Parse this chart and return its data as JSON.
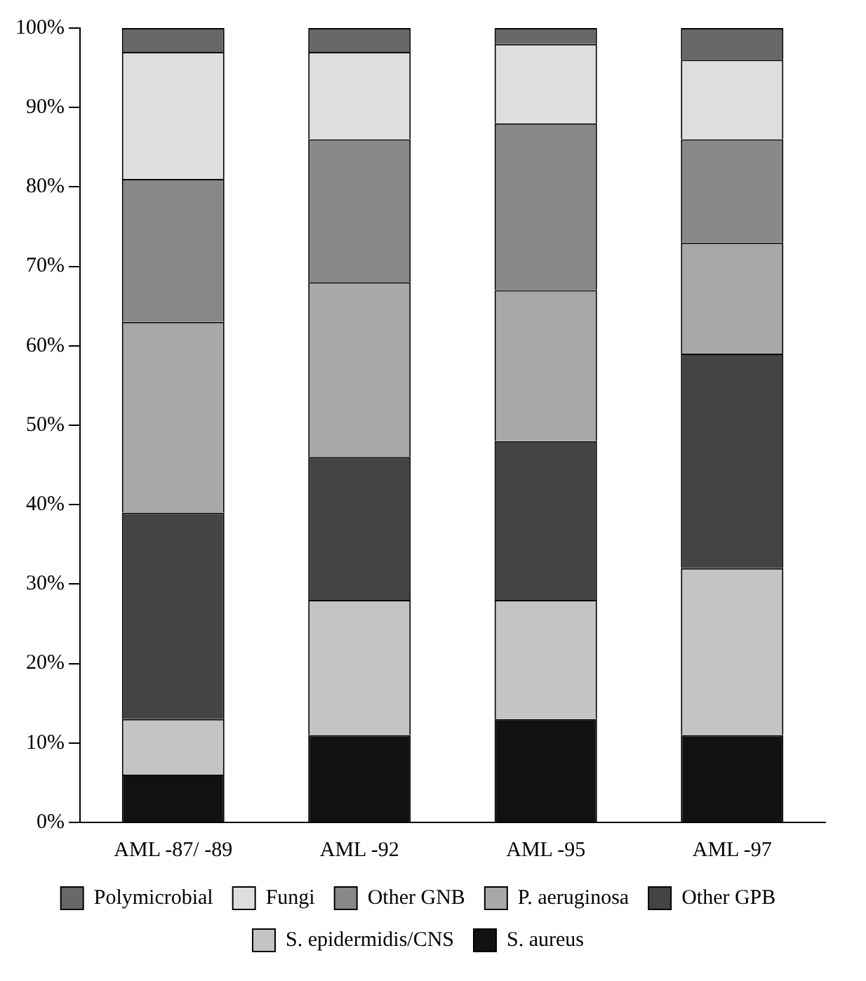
{
  "chart_data": {
    "type": "bar",
    "stacked": true,
    "categories": [
      "AML -87/ -89",
      "AML -92",
      "AML -95",
      "AML -97"
    ],
    "series": [
      {
        "name": "S. aureus",
        "color": "#111111",
        "values": [
          6,
          11,
          13,
          11
        ]
      },
      {
        "name": "S. epidermidis/CNS",
        "color": "#c4c4c4",
        "values": [
          7,
          17,
          15,
          21
        ]
      },
      {
        "name": "Other GPB",
        "color": "#444444",
        "values": [
          26,
          18,
          20,
          27
        ]
      },
      {
        "name": "P. aeruginosa",
        "color": "#a8a8a8",
        "values": [
          24,
          22,
          19,
          14
        ]
      },
      {
        "name": "Other GNB",
        "color": "#888888",
        "values": [
          18,
          18,
          21,
          13
        ]
      },
      {
        "name": "Fungi",
        "color": "#dedede",
        "values": [
          16,
          11,
          10,
          10
        ]
      },
      {
        "name": "Polymicrobial",
        "color": "#686868",
        "values": [
          3,
          3,
          2,
          4
        ]
      }
    ],
    "ylim": [
      0,
      100
    ],
    "yticks": [
      {
        "value": 0,
        "label": "0%"
      },
      {
        "value": 10,
        "label": "10%"
      },
      {
        "value": 20,
        "label": "20%"
      },
      {
        "value": 30,
        "label": "30%"
      },
      {
        "value": 40,
        "label": "40%"
      },
      {
        "value": 50,
        "label": "50%"
      },
      {
        "value": 60,
        "label": "60%"
      },
      {
        "value": 70,
        "label": "70%"
      },
      {
        "value": 80,
        "label": "80%"
      },
      {
        "value": 90,
        "label": "90%"
      },
      {
        "value": 100,
        "label": "100%"
      }
    ],
    "grid": false,
    "legend": "bottom"
  }
}
